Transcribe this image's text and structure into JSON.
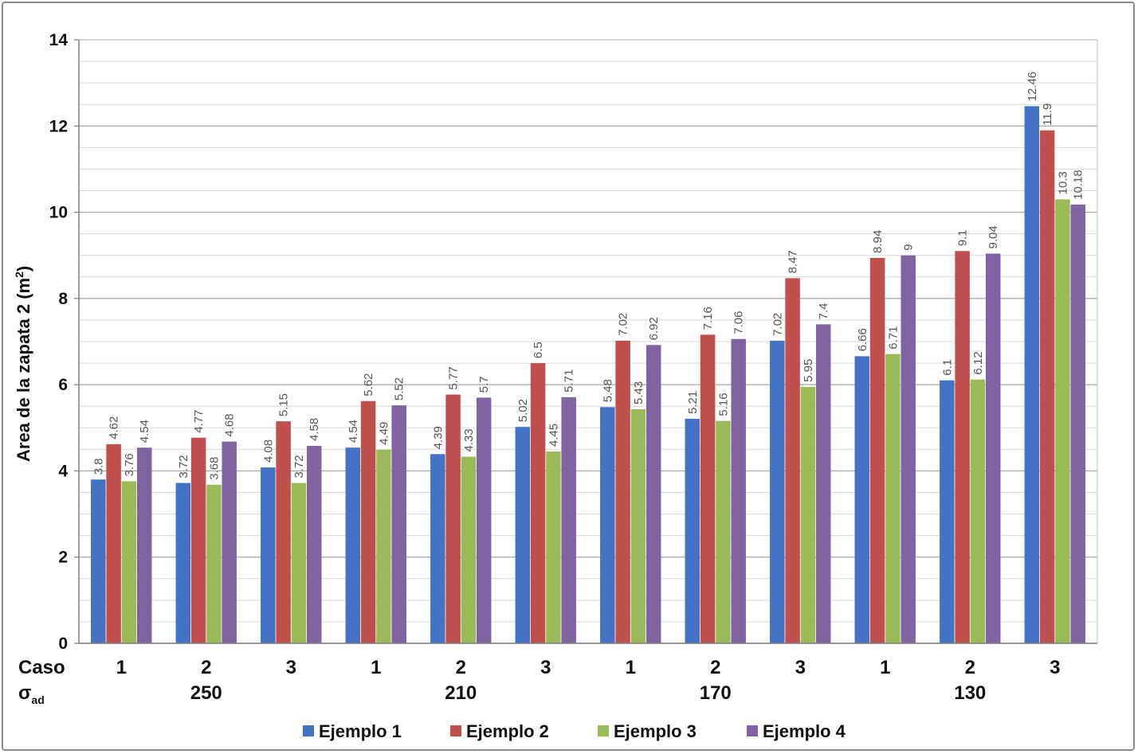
{
  "chart_data": {
    "type": "bar",
    "ylabel": "Area de la zapata 2 (m",
    "ylabel_sup": "2",
    "ylabel_close": ")",
    "ylim": [
      0,
      14
    ],
    "ytick_values": [
      0,
      2,
      4,
      6,
      8,
      10,
      12,
      14
    ],
    "ytick_labels": [
      "0",
      "2",
      "4",
      "6",
      "8",
      "10",
      "12",
      "14"
    ],
    "row1_label": "Caso",
    "row2_label_main": "σ",
    "row2_label_sub": "ad",
    "categories": [
      "1",
      "2",
      "3",
      "1",
      "2",
      "3",
      "1",
      "2",
      "3",
      "1",
      "2",
      "3"
    ],
    "groups": [
      {
        "label": "250",
        "span": [
          0,
          2
        ]
      },
      {
        "label": "210",
        "span": [
          3,
          5
        ]
      },
      {
        "label": "170",
        "span": [
          6,
          8
        ]
      },
      {
        "label": "130",
        "span": [
          9,
          11
        ]
      }
    ],
    "series": [
      {
        "name": "Ejemplo 1",
        "color": "#4472c4",
        "values": [
          3.8,
          3.72,
          4.08,
          4.54,
          4.39,
          5.02,
          5.48,
          5.21,
          7.02,
          6.66,
          6.1,
          12.46
        ],
        "labels": [
          "3.8",
          "3.72",
          "4.08",
          "4.54",
          "4.39",
          "5.02",
          "5.48",
          "5.21",
          "7.02",
          "6.66",
          "6.1",
          "12.46"
        ]
      },
      {
        "name": "Ejemplo 2",
        "color": "#c0504d",
        "values": [
          4.62,
          4.77,
          5.15,
          5.62,
          5.77,
          6.5,
          7.02,
          7.16,
          8.47,
          8.94,
          9.1,
          11.9
        ],
        "labels": [
          "4.62",
          "4.77",
          "5.15",
          "5.62",
          "5.77",
          "6.5",
          "7.02",
          "7.16",
          "8.47",
          "8.94",
          "9.1",
          "11.9"
        ]
      },
      {
        "name": "Ejemplo 3",
        "color": "#9bbb59",
        "values": [
          3.76,
          3.68,
          3.72,
          4.49,
          4.33,
          4.45,
          5.43,
          5.16,
          5.95,
          6.71,
          6.12,
          10.3
        ],
        "labels": [
          "3.76",
          "3.68",
          "3.72",
          "4.49",
          "4.33",
          "4.45",
          "5.43",
          "5.16",
          "5.95",
          "6.71",
          "6.12",
          "10.3"
        ]
      },
      {
        "name": "Ejemplo 4",
        "color": "#8064a2",
        "values": [
          4.54,
          4.68,
          4.58,
          5.52,
          5.7,
          5.71,
          6.92,
          7.06,
          7.4,
          9.0,
          9.04,
          10.18
        ],
        "labels": [
          "4.54",
          "4.68",
          "4.58",
          "5.52",
          "5.7",
          "5.71",
          "6.92",
          "7.06",
          "7.4",
          "9",
          "9.04",
          "10.18"
        ]
      }
    ],
    "legend_position": "bottom"
  }
}
